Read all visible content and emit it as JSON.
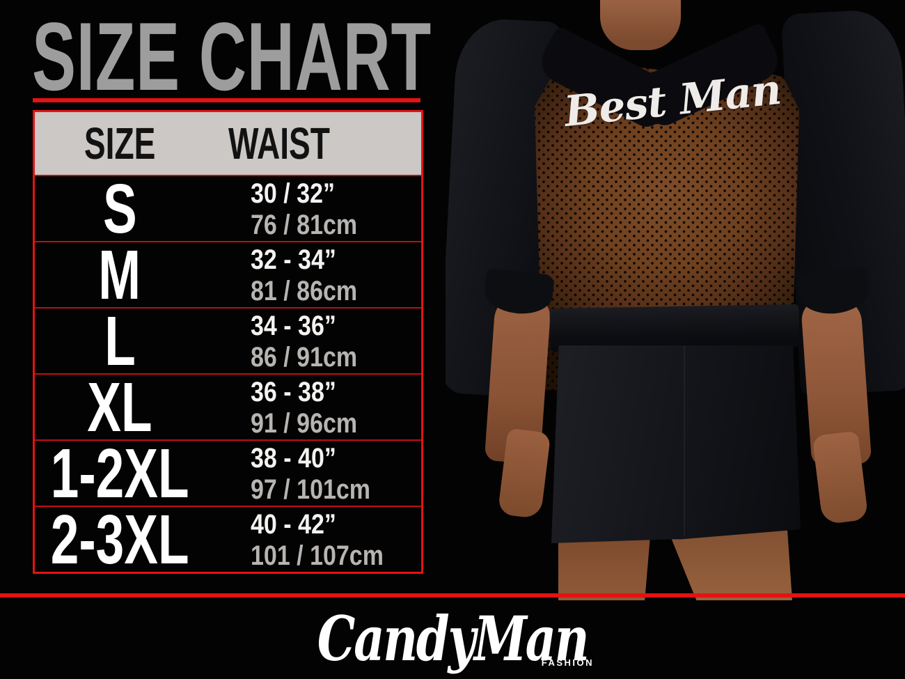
{
  "chart_data": {
    "type": "table",
    "title": "SIZE CHART",
    "columns": {
      "size": "SIZE",
      "waist": "WAIST"
    },
    "rows": [
      {
        "size": "S",
        "waist_in": "30 / 32”",
        "waist_cm": "76 / 81cm"
      },
      {
        "size": "M",
        "waist_in": "32 - 34”",
        "waist_cm": "81 / 86cm"
      },
      {
        "size": "L",
        "waist_in": "34 - 36”",
        "waist_cm": "86 / 91cm"
      },
      {
        "size": "XL",
        "waist_in": "36 - 38”",
        "waist_cm": "91 / 96cm"
      },
      {
        "size": "1-2XL",
        "waist_in": "38 - 40”",
        "waist_cm": "97 / 101cm"
      },
      {
        "size": "2-3XL",
        "waist_in": "40 - 42”",
        "waist_cm": "101 / 107cm"
      }
    ]
  },
  "photo": {
    "garment_text": "Best Man"
  },
  "logo": {
    "brand": "CandyMan",
    "tagline": "FASHION"
  },
  "colors": {
    "accent_red": "#e51212",
    "row_border_red": "#bf0f14",
    "title_gray": "#9d9d9d",
    "header_bg": "#cbc8c5",
    "background": "#030303"
  }
}
